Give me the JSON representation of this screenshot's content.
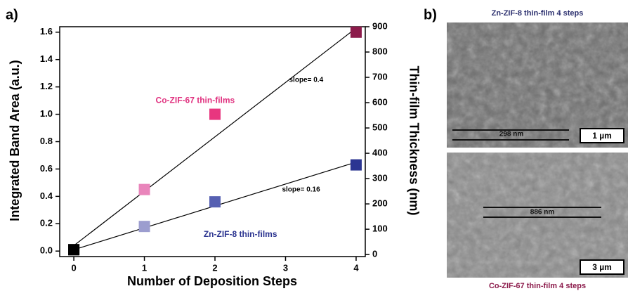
{
  "chart_data": {
    "type": "scatter",
    "panel_label": "a)",
    "xlabel": "Number of Deposition Steps",
    "ylabel": "Integrated Band Area (a.u.)",
    "y2label": "Thin-film Thickness (nm)",
    "xlim": [
      -0.2,
      4.13
    ],
    "xticks": [
      0,
      1,
      2,
      3,
      4
    ],
    "ylim": [
      -0.04,
      1.64
    ],
    "yticks": [
      {
        "value": 0,
        "label": "0.0"
      },
      0.2,
      0.4,
      0.6,
      0.8,
      {
        "value": 1,
        "label": "1.0"
      },
      1.2,
      1.4,
      1.6
    ],
    "y2lim": [
      -8,
      900
    ],
    "y2ticks": [
      0,
      100,
      200,
      300,
      400,
      500,
      600,
      700,
      800,
      900
    ],
    "series": [
      {
        "name": "Co-ZIF-67 thin-films",
        "color": "#e0317f",
        "x": [
          0,
          1,
          2,
          4
        ],
        "values": [
          0.01,
          0.45,
          1.0,
          1.6
        ],
        "colors": [
          "#000000",
          "#e985bb",
          "#e8367f",
          "#8c1b4b"
        ]
      },
      {
        "name": "Zn-ZIF-8 thin-films",
        "color": "#2b3490",
        "x": [
          0,
          1,
          2,
          4
        ],
        "values": [
          0.01,
          0.18,
          0.36,
          0.63
        ],
        "colors": [
          "#000000",
          "#9c9dcf",
          "#5660b2",
          "#2b3592"
        ]
      }
    ],
    "fit_lines": [
      {
        "x": [
          0,
          4
        ],
        "y": [
          0.04,
          1.63
        ],
        "label": "slope= 0.4",
        "label_at": [
          3.05,
          1.25
        ]
      },
      {
        "x": [
          0,
          4
        ],
        "y": [
          0.01,
          0.65
        ],
        "label": "slope= 0.16",
        "label_at": [
          2.95,
          0.45
        ]
      }
    ]
  },
  "panel_b": {
    "panel_label": "b)",
    "top": {
      "title": "Zn-ZIF-8 thin-film 4 steps",
      "measure": "298 nm",
      "scale": "1 µm"
    },
    "bottom": {
      "title": "Co-ZIF-67 thin-film 4 steps",
      "measure": "886 nm",
      "scale": "3 µm"
    }
  }
}
